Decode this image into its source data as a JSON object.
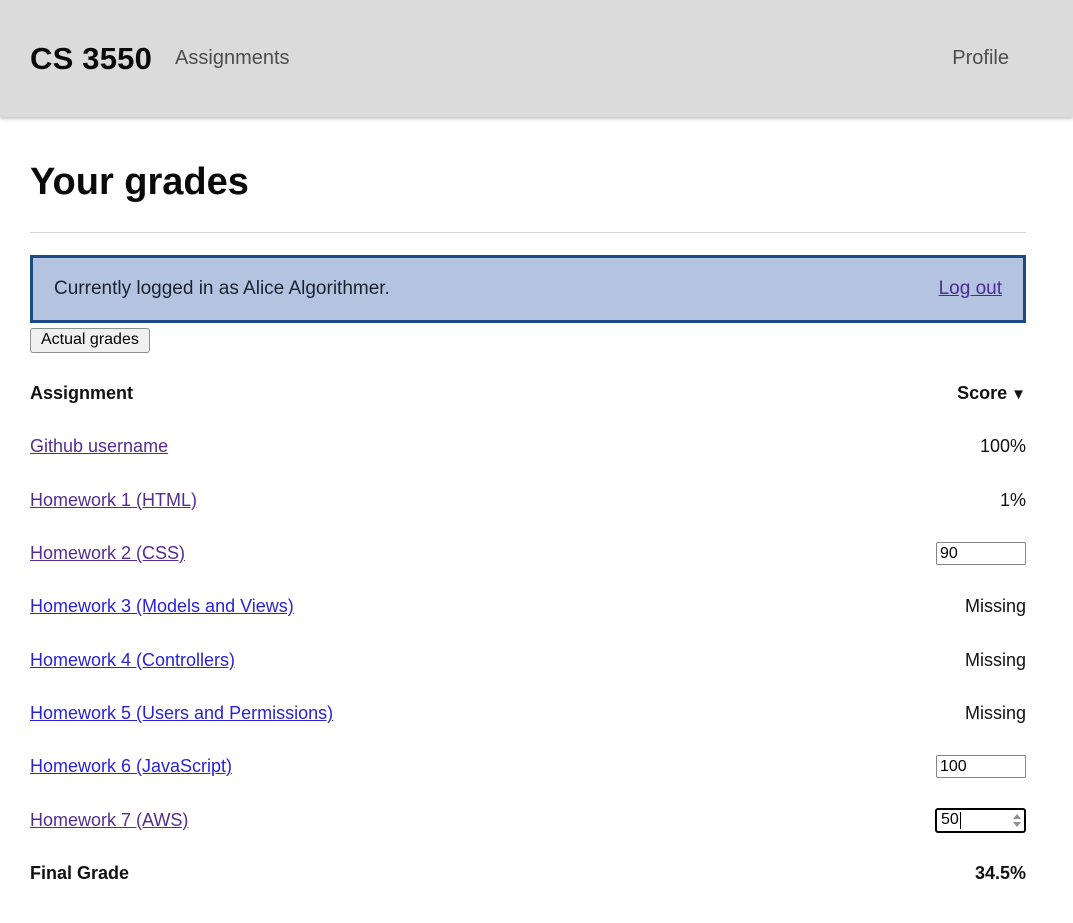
{
  "header": {
    "brand": "CS 3550",
    "assignments_label": "Assignments",
    "profile_label": "Profile"
  },
  "page": {
    "title": "Your grades"
  },
  "banner": {
    "message": "Currently logged in as Alice Algorithmer.",
    "logout_label": "Log out",
    "background_color": "#b4c3e0",
    "border_color": "#1c4a84"
  },
  "actions": {
    "actual_grades_label": "Actual grades"
  },
  "table": {
    "columns": {
      "assignment": "Assignment",
      "score": "Score",
      "sort_icon": "▼"
    },
    "rows": [
      {
        "assignment": "Github username",
        "type": "text",
        "score": "100%",
        "link_state": "visited"
      },
      {
        "assignment": "Homework 1 (HTML)",
        "type": "text",
        "score": "1%",
        "link_state": "visited"
      },
      {
        "assignment": "Homework 2 (CSS)",
        "type": "input",
        "value": "90",
        "link_state": "visited"
      },
      {
        "assignment": "Homework 3 (Models and Views)",
        "type": "text",
        "score": "Missing",
        "link_state": "unvisited"
      },
      {
        "assignment": "Homework 4 (Controllers)",
        "type": "text",
        "score": "Missing",
        "link_state": "unvisited"
      },
      {
        "assignment": "Homework 5 (Users and Permissions)",
        "type": "text",
        "score": "Missing",
        "link_state": "unvisited"
      },
      {
        "assignment": "Homework 6 (JavaScript)",
        "type": "input",
        "value": "100",
        "link_state": "unvisited"
      },
      {
        "assignment": "Homework 7 (AWS)",
        "type": "input",
        "value": "50",
        "focused": true,
        "link_state": "visited"
      }
    ],
    "footer": {
      "label": "Final Grade",
      "value": "34.5%"
    }
  },
  "colors": {
    "header_background": "#dbdbdb",
    "link_unvisited": "#2a23d6",
    "link_visited": "#552d90",
    "logout_link": "#4b2a91"
  }
}
